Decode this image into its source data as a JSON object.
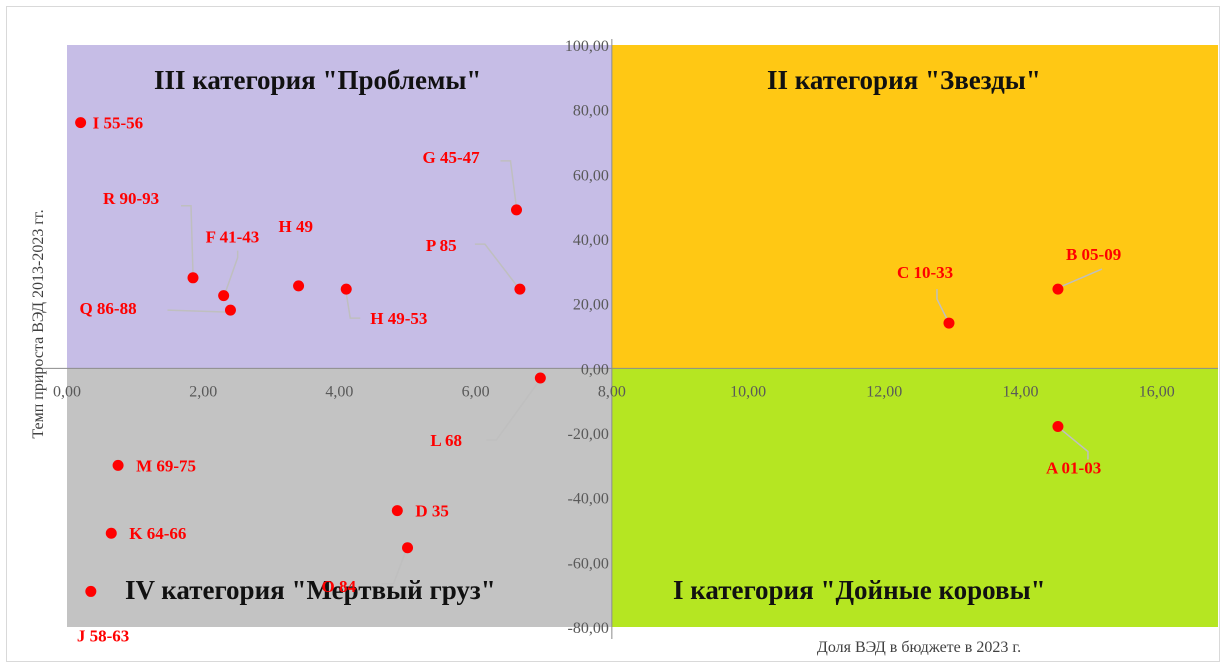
{
  "chart_data": {
    "type": "scatter",
    "xlabel": "Доля ВЭД в бюджете в 2023   г.",
    "ylabel": "Темп прироста ВЭД 2013-2023   гг.",
    "xlim": [
      0,
      16.9
    ],
    "ylim": [
      -80,
      100
    ],
    "x_ticks": [
      "0,00",
      "2,00",
      "4,00",
      "6,00",
      "8,00",
      "10,00",
      "12,00",
      "14,00",
      "16,00"
    ],
    "y_ticks": [
      "100,00",
      "80,00",
      "60,00",
      "40,00",
      "20,00",
      "0,00",
      "-20,00",
      "-40,00",
      "-60,00",
      "-80,00"
    ],
    "quadrants": {
      "top_left": {
        "title": "III категория \"Проблемы\"",
        "color": "#c6bde6"
      },
      "top_right": {
        "title": "II категория \"Звезды\"",
        "color": "#ffc814"
      },
      "bottom_left": {
        "title": "IV категория \"Мертвый груз\"",
        "color": "#c3c3c3"
      },
      "bottom_right": {
        "title": "I категория \"Дойные коровы\"",
        "color": "#b5e622"
      }
    },
    "marker_color": "#ff0000",
    "points": [
      {
        "label": "I 55-56",
        "x": 0.2,
        "y": 76
      },
      {
        "label": "G 45-47",
        "x": 6.6,
        "y": 49
      },
      {
        "label": "R 90-93",
        "x": 1.85,
        "y": 28
      },
      {
        "label": "F 41-43",
        "x": 2.3,
        "y": 22.5
      },
      {
        "label": "H 49",
        "x": 3.4,
        "y": 25.5
      },
      {
        "label": "P 85",
        "x": 6.65,
        "y": 24.5
      },
      {
        "label": "Q 86-88",
        "x": 2.4,
        "y": 18
      },
      {
        "label": "H 49-53",
        "x": 4.1,
        "y": 24.5
      },
      {
        "label": "C 10-33",
        "x": 12.95,
        "y": 14
      },
      {
        "label": "B 05-09",
        "x": 14.55,
        "y": 24.5
      },
      {
        "label": "L 68",
        "x": 6.95,
        "y": -3
      },
      {
        "label": "A 01-03",
        "x": 14.55,
        "y": -18
      },
      {
        "label": "M 69-75",
        "x": 0.75,
        "y": -30
      },
      {
        "label": "D 35",
        "x": 4.85,
        "y": -44
      },
      {
        "label": "K 64-66",
        "x": 0.65,
        "y": -51
      },
      {
        "label": "O 84",
        "x": 5.0,
        "y": -55.5
      },
      {
        "label": "J 58-63",
        "x": 0.35,
        "y": -69
      }
    ]
  }
}
